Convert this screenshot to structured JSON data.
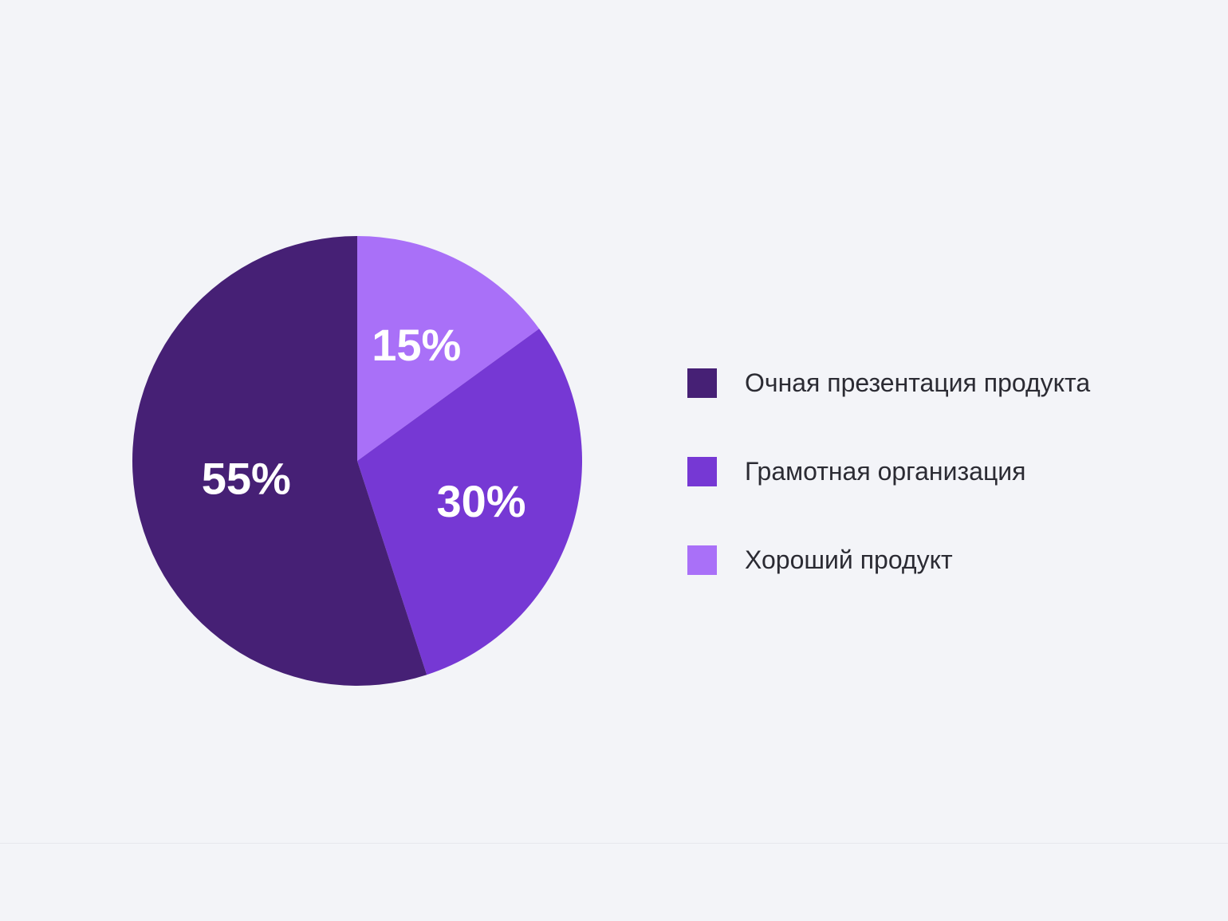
{
  "chart_data": {
    "type": "pie",
    "slices": [
      {
        "label": "Хороший продукт",
        "value": 15,
        "value_label": "15%",
        "color": "#a970f8"
      },
      {
        "label": "Грамотная организация",
        "value": 30,
        "value_label": "30%",
        "color": "#7638d4"
      },
      {
        "label": "Очная презентация продукта",
        "value": 55,
        "value_label": "55%",
        "color": "#462075"
      }
    ],
    "start_angle": "12 o'clock",
    "direction": "clockwise",
    "legend_position": "right",
    "legend": [
      {
        "label": "Очная презентация продукта",
        "color": "#462075"
      },
      {
        "label": "Грамотная организация",
        "color": "#7638d4"
      },
      {
        "label": "Хороший продукт",
        "color": "#a970f8"
      }
    ],
    "title": ""
  }
}
